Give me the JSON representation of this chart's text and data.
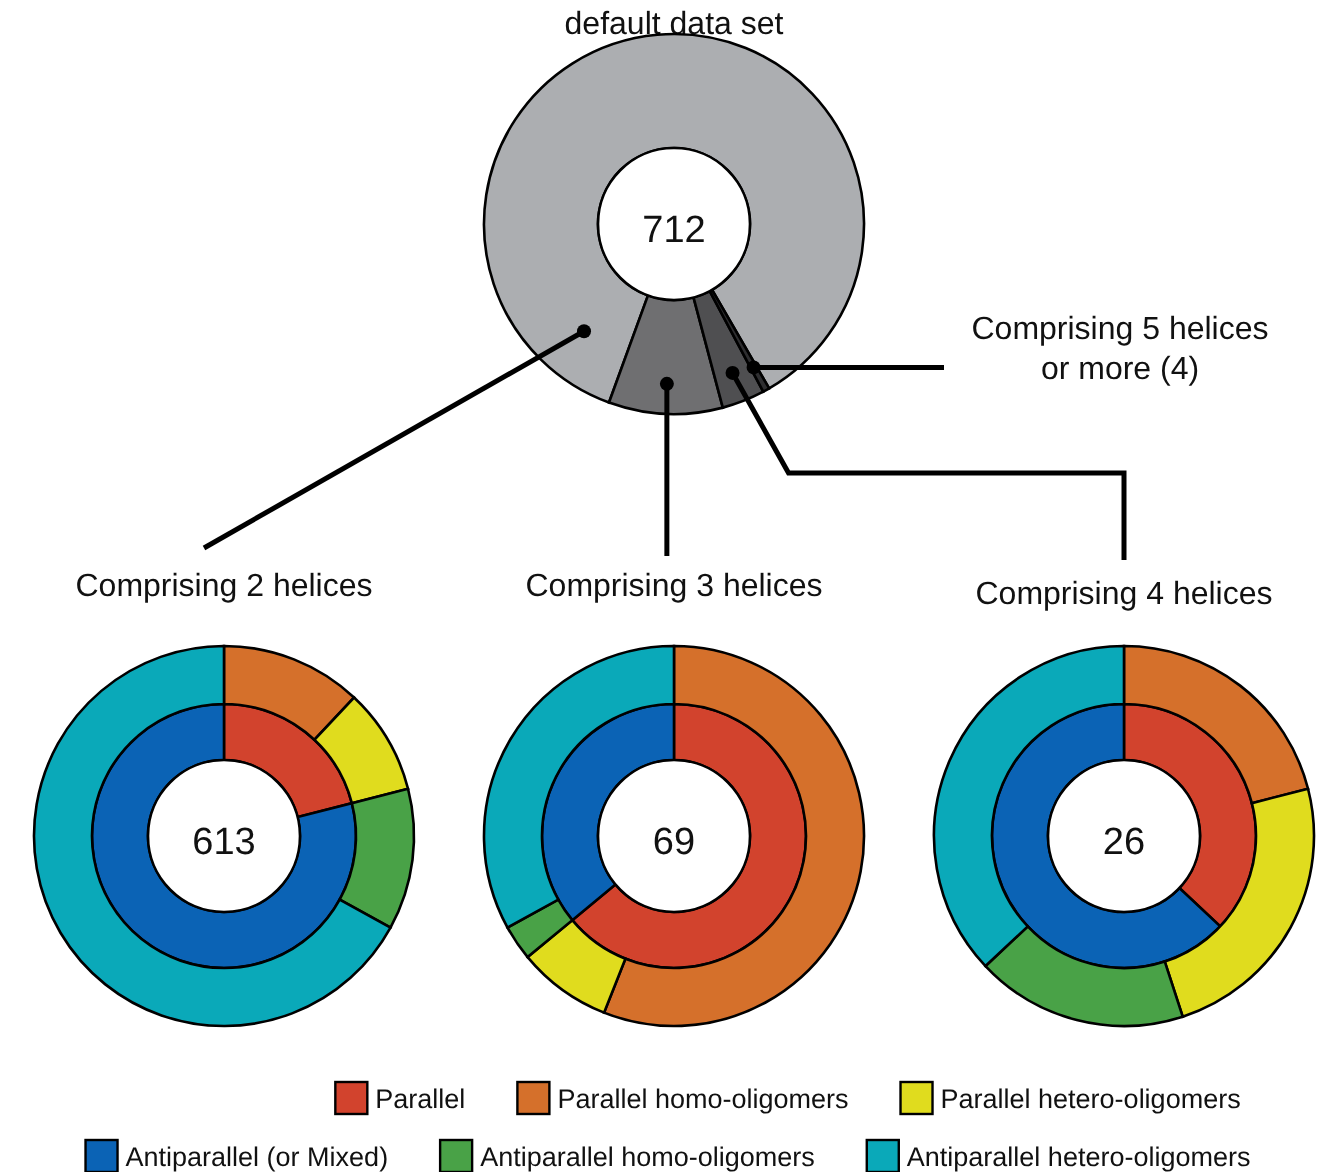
{
  "chart_data": [
    {
      "type": "donut",
      "title": "default data set",
      "categories": [
        "Comprising 2 helices",
        "Comprising 3 helices",
        "Comprising 4 helices",
        "Comprising 5 helices or more (4)"
      ],
      "values": [
        613,
        69,
        26,
        4
      ],
      "colors": [
        "#acaeb1",
        "#6f6f71",
        "#4f4f51",
        "#2e2e30"
      ],
      "annotations": [
        "712"
      ]
    },
    {
      "type": "donut",
      "categories": [
        "Parallel",
        "Parallel homo-oligomers",
        "Parallel hetero-oligomers",
        "Antiparallel (or Mixed)",
        "Antiparallel homo-oligomers",
        "Antiparallel hetero-oligomers"
      ],
      "colors": [
        "#d2432d",
        "#d5702b",
        "#e0dc1e",
        "#0b63b5",
        "#49a247",
        "#0aa9b9"
      ],
      "legend": "bottom",
      "annotations": [
        "613"
      ],
      "series": [
        {
          "values": [
            21,
            0,
            0,
            79,
            0,
            0
          ]
        },
        {
          "values": [
            0,
            12,
            9,
            0,
            12,
            67
          ]
        }
      ]
    },
    {
      "type": "donut",
      "colors": [
        "#d2432d",
        "#d5702b",
        "#e0dc1e",
        "#0b63b5",
        "#49a247",
        "#0aa9b9"
      ],
      "annotations": [
        "69"
      ],
      "series": [
        {
          "values": [
            64,
            0,
            0,
            36,
            0,
            0
          ]
        },
        {
          "values": [
            0,
            56,
            8,
            0,
            3,
            33
          ]
        }
      ]
    },
    {
      "type": "donut",
      "colors": [
        "#d2432d",
        "#d5702b",
        "#e0dc1e",
        "#0b63b5",
        "#49a247",
        "#0aa9b9"
      ],
      "annotations": [
        "26"
      ],
      "series": [
        {
          "values": [
            37,
            0,
            0,
            63,
            0,
            0
          ]
        },
        {
          "values": [
            0,
            21,
            24,
            0,
            18,
            37
          ]
        }
      ]
    }
  ]
}
